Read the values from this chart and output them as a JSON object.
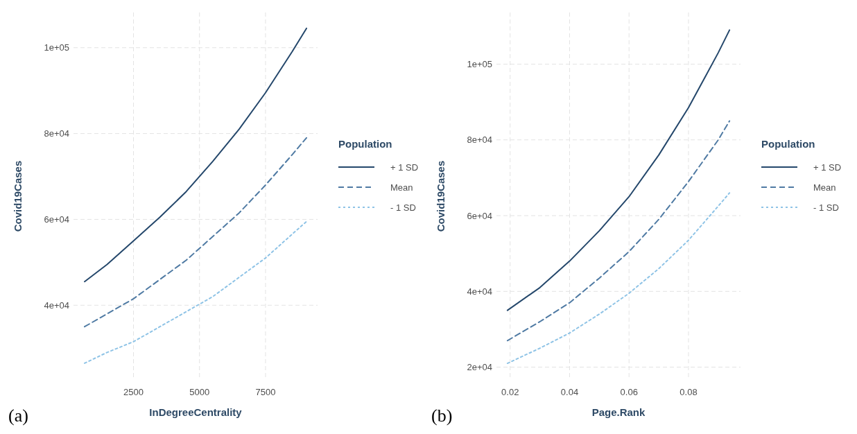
{
  "chart_data": [
    {
      "type": "line",
      "xlabel": "InDegreeCentrality",
      "ylabel": "Covid19Cases",
      "legend_title": "Population",
      "legend": "right",
      "grid": true,
      "annotations": [
        "(a)"
      ],
      "xlim": [
        230,
        9470
      ],
      "xticks": [
        2500,
        5000,
        7500
      ],
      "ylim": [
        22600,
        108200
      ],
      "yticks": [
        {
          "value": 40000,
          "label": "4e+04"
        },
        {
          "value": 60000,
          "label": "6e+04"
        },
        {
          "value": 80000,
          "label": "8e+04"
        },
        {
          "value": 100000,
          "label": "1e+05"
        }
      ],
      "series": [
        {
          "name": "+ 1 SD",
          "color": "#24476b",
          "line_style": "solid",
          "x": [
            650,
            1500,
            2500,
            3500,
            4500,
            5500,
            6500,
            7500,
            8500,
            9050
          ],
          "values": [
            45500,
            49500,
            55000,
            60500,
            66500,
            73500,
            81000,
            89500,
            99000,
            104500
          ]
        },
        {
          "name": "Mean",
          "color": "#4f7aa3",
          "line_style": "dashed",
          "x": [
            650,
            1500,
            2500,
            3500,
            4500,
            5500,
            6500,
            7500,
            8500,
            9050
          ],
          "values": [
            35000,
            38000,
            41500,
            46000,
            50500,
            56000,
            61500,
            68000,
            75000,
            79000
          ]
        },
        {
          "name": "- 1 SD",
          "color": "#8ec3e6",
          "line_style": "dotted",
          "x": [
            650,
            1500,
            2500,
            3500,
            4500,
            5500,
            6500,
            7500,
            8500,
            9050
          ],
          "values": [
            26500,
            29000,
            31500,
            35000,
            38500,
            42000,
            46500,
            51000,
            56500,
            59500
          ]
        }
      ]
    },
    {
      "type": "line",
      "xlabel": "Page.Rank",
      "ylabel": "Covid19Cases",
      "legend_title": "Population",
      "legend": "right",
      "grid": true,
      "annotations": [
        "(b)"
      ],
      "xlim": [
        0.0154,
        0.0975
      ],
      "xticks": [
        0.02,
        0.04,
        0.06,
        0.08
      ],
      "ylim": [
        16620,
        113640
      ],
      "yticks": [
        {
          "value": 20000,
          "label": "2e+04"
        },
        {
          "value": 40000,
          "label": "4e+04"
        },
        {
          "value": 60000,
          "label": "6e+04"
        },
        {
          "value": 80000,
          "label": "8e+04"
        },
        {
          "value": 100000,
          "label": "1e+05"
        }
      ],
      "series": [
        {
          "name": "+ 1 SD",
          "color": "#24476b",
          "line_style": "solid",
          "x": [
            0.0191,
            0.03,
            0.04,
            0.05,
            0.06,
            0.07,
            0.08,
            0.09,
            0.0938
          ],
          "values": [
            35000,
            41000,
            48000,
            56000,
            65000,
            76000,
            88500,
            103000,
            109000
          ]
        },
        {
          "name": "Mean",
          "color": "#4f7aa3",
          "line_style": "dashed",
          "x": [
            0.0191,
            0.03,
            0.04,
            0.05,
            0.06,
            0.07,
            0.08,
            0.09,
            0.0938
          ],
          "values": [
            27000,
            32000,
            37000,
            43500,
            50500,
            59000,
            69000,
            80000,
            85000
          ]
        },
        {
          "name": "- 1 SD",
          "color": "#8ec3e6",
          "line_style": "dotted",
          "x": [
            0.0191,
            0.03,
            0.04,
            0.05,
            0.06,
            0.07,
            0.08,
            0.09,
            0.0938
          ],
          "values": [
            21000,
            25000,
            29000,
            34000,
            39500,
            46000,
            53500,
            62500,
            66000
          ]
        }
      ]
    }
  ]
}
